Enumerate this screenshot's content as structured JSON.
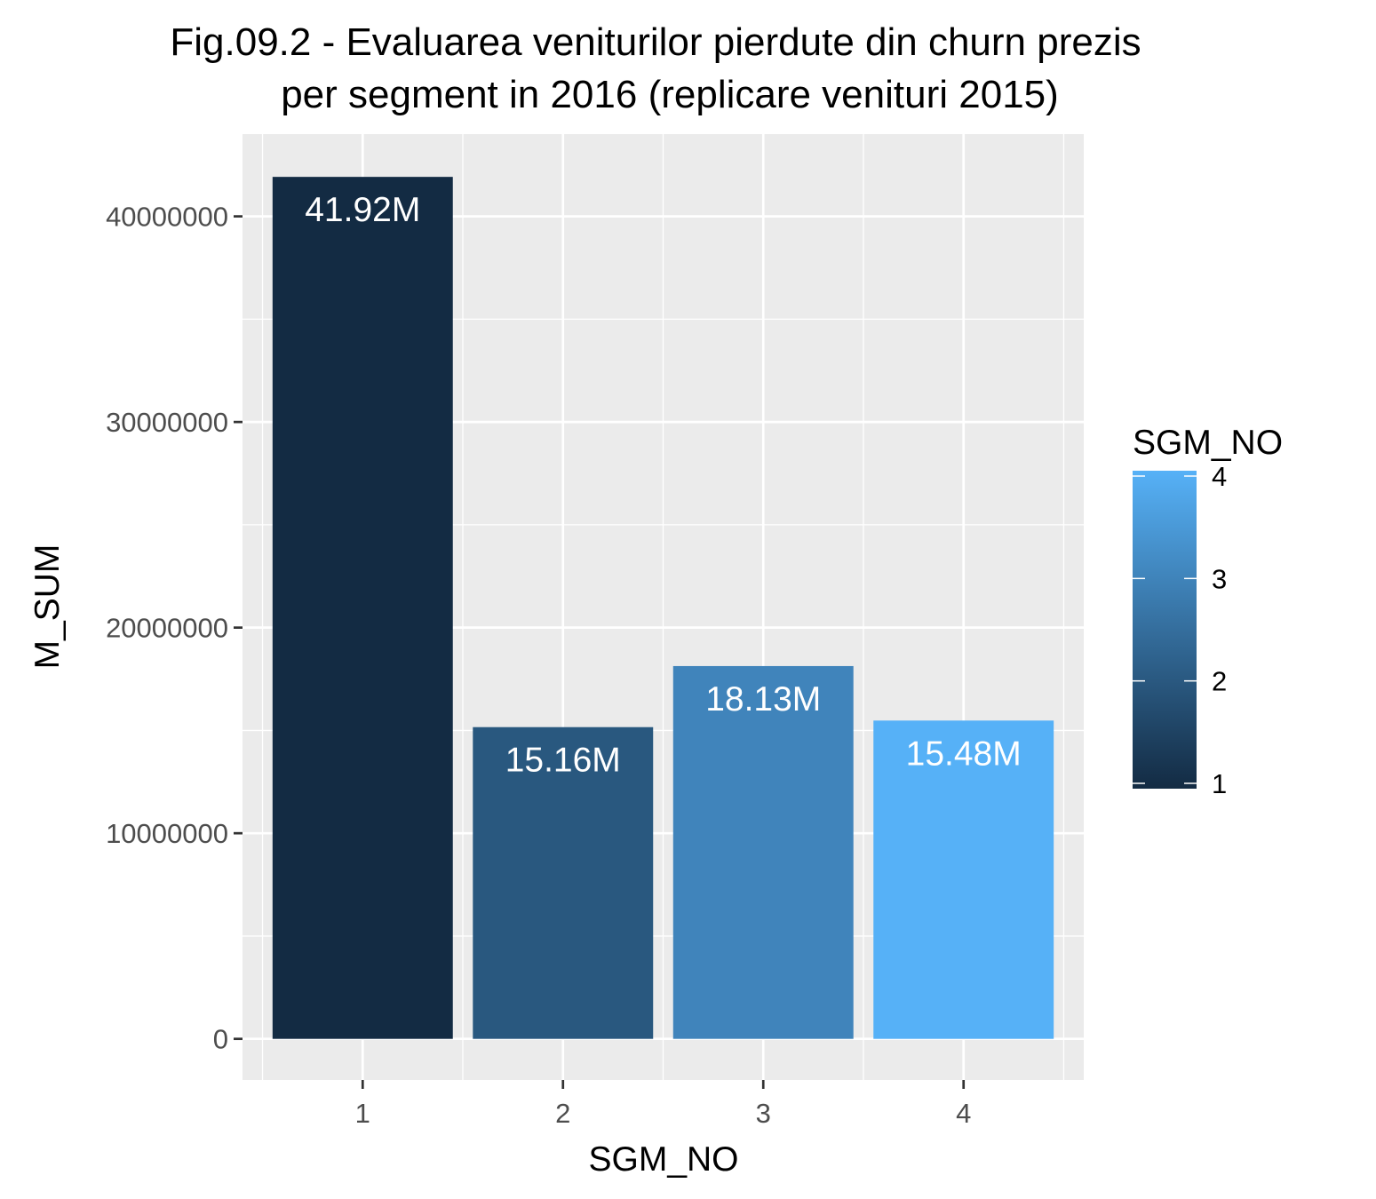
{
  "chart_data": {
    "type": "bar",
    "title_lines": [
      "Fig.09.2 - Evaluarea veniturilor pierdute din churn prezis",
      "per segment in 2016 (replicare venituri 2015)"
    ],
    "xlabel": "SGM_NO",
    "ylabel": "M_SUM",
    "categories": [
      "1",
      "2",
      "3",
      "4"
    ],
    "values": [
      41920000,
      15160000,
      18130000,
      15480000
    ],
    "value_labels": [
      "41.92M",
      "15.16M",
      "18.13M",
      "15.48M"
    ],
    "ylim": [
      -2000000,
      44000000
    ],
    "y_ticks": [
      0,
      10000000,
      20000000,
      30000000,
      40000000
    ],
    "y_tick_labels": [
      "0",
      "10000000",
      "20000000",
      "30000000",
      "40000000"
    ],
    "grid": true,
    "panel_background": "#ebebeb",
    "fill_scale": {
      "low_color": "#132b43",
      "high_color": "#56b1f7",
      "min": 1,
      "max": 4
    },
    "legend": {
      "title": "SGM_NO",
      "placement": "right",
      "ticks": [
        1,
        2,
        3,
        4
      ],
      "tick_labels": [
        "1",
        "2",
        "3",
        "4"
      ]
    }
  }
}
